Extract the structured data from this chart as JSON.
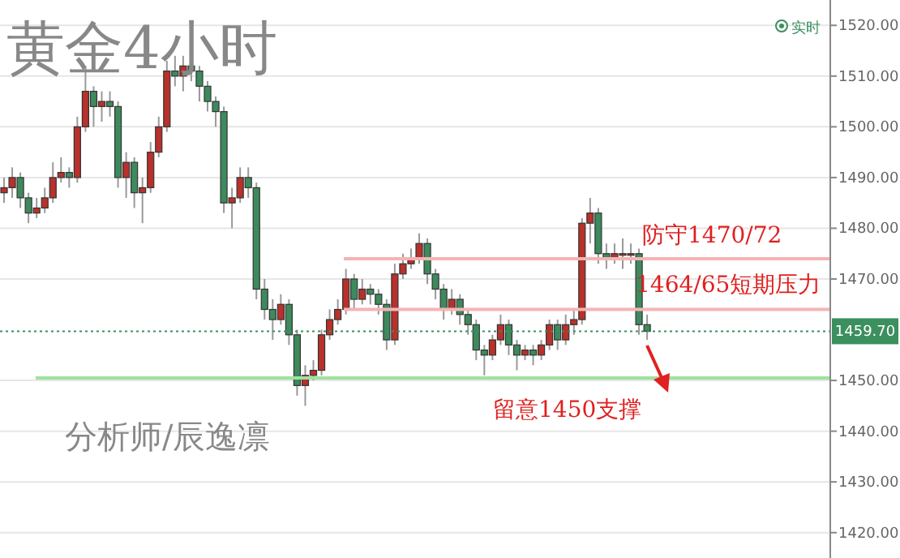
{
  "chart_data": {
    "type": "candlestick",
    "title": "黄金4小时",
    "categories": [
      null,
      null,
      null,
      null,
      null,
      null,
      null,
      null,
      null,
      null,
      null,
      null,
      null,
      null,
      null,
      null,
      null,
      null,
      null,
      null,
      null,
      null,
      null,
      null,
      null,
      null,
      null,
      null,
      null,
      null,
      null,
      null,
      null,
      null,
      null,
      null,
      null,
      null,
      null,
      null,
      null,
      null,
      null,
      null,
      null,
      null,
      null,
      null,
      null,
      null,
      null,
      null,
      null,
      null,
      null,
      null,
      null,
      null,
      null,
      null,
      null,
      null,
      null,
      null,
      null,
      null,
      null,
      null,
      null,
      null,
      null,
      null,
      null,
      null,
      null,
      null,
      null,
      null,
      null,
      null,
      null,
      null,
      null,
      null,
      null,
      null,
      null,
      null,
      null,
      null,
      null,
      null,
      null,
      null,
      null,
      null,
      null,
      null,
      null,
      null,
      null,
      null
    ],
    "ohlc": [
      [
        1487,
        1490,
        1485,
        1488
      ],
      [
        1488,
        1492,
        1486,
        1490
      ],
      [
        1490,
        1491,
        1484,
        1486
      ],
      [
        1486,
        1487,
        1481,
        1483
      ],
      [
        1483,
        1486,
        1482,
        1484
      ],
      [
        1484,
        1488,
        1483,
        1486
      ],
      [
        1486,
        1493,
        1485,
        1490
      ],
      [
        1490,
        1494,
        1489,
        1491
      ],
      [
        1491,
        1492,
        1488,
        1490
      ],
      [
        1490,
        1502,
        1489,
        1500
      ],
      [
        1500,
        1512,
        1499,
        1507
      ],
      [
        1507,
        1508,
        1500,
        1504
      ],
      [
        1504,
        1507,
        1501,
        1505
      ],
      [
        1505,
        1507,
        1502,
        1504
      ],
      [
        1504,
        1505,
        1488,
        1490
      ],
      [
        1490,
        1495,
        1486,
        1493
      ],
      [
        1493,
        1494,
        1484,
        1487
      ],
      [
        1487,
        1490,
        1481,
        1488
      ],
      [
        1488,
        1497,
        1487,
        1495
      ],
      [
        1495,
        1502,
        1494,
        1500
      ],
      [
        1500,
        1513,
        1499,
        1511
      ],
      [
        1511,
        1514,
        1508,
        1510
      ],
      [
        1510,
        1514,
        1507,
        1512
      ],
      [
        1512,
        1514,
        1509,
        1511
      ],
      [
        1511,
        1512,
        1505,
        1508
      ],
      [
        1508,
        1509,
        1503,
        1505
      ],
      [
        1505,
        1506,
        1500,
        1503
      ],
      [
        1503,
        1504,
        1483,
        1485
      ],
      [
        1485,
        1488,
        1480,
        1486
      ],
      [
        1486,
        1492,
        1485,
        1490
      ],
      [
        1490,
        1492,
        1486,
        1488
      ],
      [
        1488,
        1489,
        1466,
        1468
      ],
      [
        1468,
        1470,
        1462,
        1464
      ],
      [
        1464,
        1466,
        1458,
        1462
      ],
      [
        1462,
        1467,
        1461,
        1465
      ],
      [
        1465,
        1466,
        1457,
        1459
      ],
      [
        1459,
        1460,
        1447,
        1449
      ],
      [
        1449,
        1453,
        1445,
        1451
      ],
      [
        1451,
        1454,
        1450,
        1452
      ],
      [
        1452,
        1460,
        1451,
        1459
      ],
      [
        1459,
        1464,
        1458,
        1462
      ],
      [
        1462,
        1466,
        1461,
        1464
      ],
      [
        1464,
        1472,
        1463,
        1470
      ],
      [
        1470,
        1471,
        1464,
        1466
      ],
      [
        1466,
        1470,
        1465,
        1468
      ],
      [
        1468,
        1469,
        1465,
        1467
      ],
      [
        1467,
        1468,
        1463,
        1465
      ],
      [
        1465,
        1466,
        1456,
        1458
      ],
      [
        1458,
        1473,
        1457,
        1471
      ],
      [
        1471,
        1475,
        1470,
        1473
      ],
      [
        1473,
        1476,
        1472,
        1474
      ],
      [
        1474,
        1479,
        1473,
        1477
      ],
      [
        1477,
        1478,
        1469,
        1471
      ],
      [
        1471,
        1472,
        1466,
        1468
      ],
      [
        1468,
        1469,
        1462,
        1464
      ],
      [
        1464,
        1468,
        1463,
        1466
      ],
      [
        1466,
        1467,
        1461,
        1463
      ],
      [
        1463,
        1464,
        1459,
        1461
      ],
      [
        1461,
        1462,
        1454,
        1456
      ],
      [
        1456,
        1457,
        1451,
        1455
      ],
      [
        1455,
        1459,
        1454,
        1458
      ],
      [
        1458,
        1463,
        1457,
        1461
      ],
      [
        1461,
        1462,
        1455,
        1457
      ],
      [
        1457,
        1458,
        1452,
        1455
      ],
      [
        1455,
        1457,
        1454,
        1456
      ],
      [
        1456,
        1457,
        1453,
        1455
      ],
      [
        1455,
        1458,
        1454,
        1457
      ],
      [
        1457,
        1462,
        1456,
        1461
      ],
      [
        1461,
        1462,
        1456,
        1458
      ],
      [
        1458,
        1463,
        1457,
        1461
      ],
      [
        1461,
        1464,
        1459,
        1462
      ],
      [
        1462,
        1482,
        1461,
        1481
      ],
      [
        1481,
        1486,
        1477,
        1483
      ],
      [
        1483,
        1484,
        1473,
        1475
      ],
      [
        1475,
        1477,
        1472,
        1474
      ],
      [
        1474,
        1477,
        1473,
        1475
      ],
      [
        1475,
        1478,
        1472,
        1475
      ],
      [
        1475,
        1477,
        1473,
        1475
      ],
      [
        1475,
        1476,
        1459,
        1461
      ],
      [
        1461,
        1463,
        1458,
        1459.7
      ],
      null,
      null,
      null,
      null,
      null,
      null,
      null,
      null,
      null,
      null,
      null,
      null,
      null,
      null,
      null,
      null,
      null,
      null,
      null,
      null,
      null,
      null
    ],
    "ylim": [
      1415,
      1525
    ],
    "yticks": [
      {
        "value": 1420,
        "label": "1420.00"
      },
      {
        "value": 1430,
        "label": "1430.00"
      },
      {
        "value": 1440,
        "label": "1440.00"
      },
      {
        "value": 1450,
        "label": "1450.00"
      },
      {
        "value": 1470,
        "label": "1470.00"
      },
      {
        "value": 1480,
        "label": "1480.00"
      },
      {
        "value": 1490,
        "label": "1490.00"
      },
      {
        "value": 1500,
        "label": "1500.00"
      },
      {
        "value": 1510,
        "label": "1510.00"
      },
      {
        "value": 1520,
        "label": "1520.00"
      }
    ],
    "grid": "y",
    "ref_lines": [
      {
        "axis": "y",
        "value": 1474,
        "label": "防守1470/72",
        "color": "#f4b4b4"
      },
      {
        "axis": "y",
        "value": 1464,
        "label": "1464/65短期压力",
        "color": "#f4b4b4"
      },
      {
        "axis": "y",
        "value": 1450.5,
        "label": "留意1450支撑",
        "color": "#9ee29e"
      },
      {
        "axis": "y",
        "value": 1459.7,
        "label": "1459.70",
        "color": "#3c8f5e",
        "line_style": "dotted"
      }
    ],
    "annotations": [
      "分析师/辰逸凛",
      "实时"
    ]
  }
}
